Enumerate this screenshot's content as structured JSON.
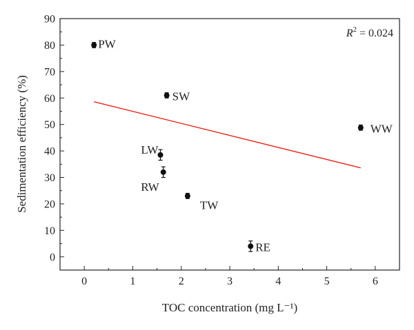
{
  "chart_data": {
    "type": "scatter",
    "xlabel": "TOC concentration (mg L⁻¹)",
    "ylabel": "Sedimentation efficiency (%)",
    "xlim": [
      -0.5,
      6.5
    ],
    "ylim": [
      -5,
      90
    ],
    "xticks": [
      0,
      1,
      2,
      3,
      4,
      5,
      6
    ],
    "yticks": [
      0,
      10,
      20,
      30,
      40,
      50,
      60,
      70,
      80,
      90
    ],
    "grid": false,
    "points": [
      {
        "label": "PW",
        "x": 0.2,
        "y": 80,
        "err": 1
      },
      {
        "label": "SW",
        "x": 1.7,
        "y": 61,
        "err": 1
      },
      {
        "label": "WW",
        "x": 5.7,
        "y": 48.8,
        "err": 1
      },
      {
        "label": "LW",
        "x": 1.57,
        "y": 38.5,
        "err": 2
      },
      {
        "label": "RW",
        "x": 1.63,
        "y": 32,
        "err": 2
      },
      {
        "label": "TW",
        "x": 2.13,
        "y": 23,
        "err": 1
      },
      {
        "label": "RE",
        "x": 3.43,
        "y": 4,
        "err": 2
      }
    ],
    "fit_line": {
      "x": [
        0.2,
        5.7
      ],
      "y": [
        58.6,
        33.6
      ],
      "color": "#e8261c"
    },
    "annotation": {
      "prefix": "R",
      "sup": "2",
      "suffix": " = 0.024",
      "position": "top-right"
    },
    "marker_color": "#111111"
  }
}
